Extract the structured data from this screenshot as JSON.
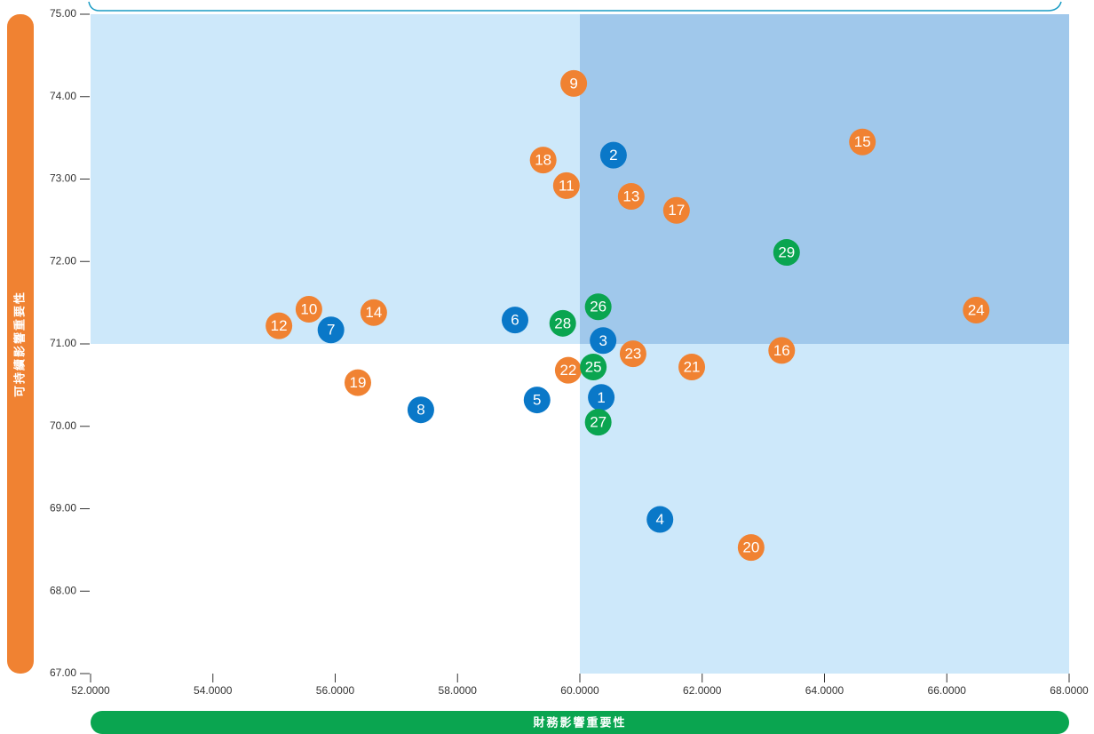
{
  "chart_data": {
    "type": "scatter",
    "xlabel": "財務影響重要性",
    "ylabel": "可持續影響重要性",
    "xlim": [
      52,
      68
    ],
    "ylim": [
      67,
      75
    ],
    "xticks": [
      {
        "value": 52,
        "label": "52.0000"
      },
      {
        "value": 54,
        "label": "54.0000"
      },
      {
        "value": 56,
        "label": "56.0000"
      },
      {
        "value": 58,
        "label": "58.0000"
      },
      {
        "value": 60,
        "label": "60.0000"
      },
      {
        "value": 62,
        "label": "62.0000"
      },
      {
        "value": 64,
        "label": "64.0000"
      },
      {
        "value": 66,
        "label": "66.0000"
      },
      {
        "value": 68,
        "label": "68.0000"
      }
    ],
    "yticks": [
      {
        "value": 67,
        "label": "67.00"
      },
      {
        "value": 68,
        "label": "68.00"
      },
      {
        "value": 69,
        "label": "69.00"
      },
      {
        "value": 70,
        "label": "70.00"
      },
      {
        "value": 71,
        "label": "71.00"
      },
      {
        "value": 72,
        "label": "72.00"
      },
      {
        "value": 73,
        "label": "73.00"
      },
      {
        "value": 74,
        "label": "74.00"
      },
      {
        "value": 75,
        "label": "75.00"
      }
    ],
    "quadrant_split": {
      "x": 60,
      "y": 71
    },
    "quadrant_colors": {
      "top_right": "#a0c8eb",
      "top_left": "#cde8fa",
      "bottom_right": "#cde8fa",
      "bottom_left": "#ffffff"
    },
    "series": [
      {
        "color": "#0a78c8",
        "labels": [
          "1",
          "2",
          "3",
          "4",
          "5",
          "6",
          "7",
          "8"
        ],
        "x": [
          60.35,
          60.55,
          60.38,
          61.31,
          59.3,
          58.94,
          55.93,
          57.4
        ],
        "values": [
          70.35,
          73.29,
          71.04,
          68.87,
          70.32,
          71.29,
          71.17,
          70.2
        ]
      },
      {
        "color": "#f08232",
        "labels": [
          "9",
          "10",
          "11",
          "12",
          "13",
          "14",
          "15",
          "16",
          "17",
          "18",
          "19",
          "20",
          "21",
          "22",
          "23",
          "24"
        ],
        "x": [
          59.9,
          55.57,
          59.78,
          55.08,
          60.84,
          56.63,
          64.62,
          63.3,
          61.58,
          59.4,
          56.37,
          62.8,
          61.83,
          59.81,
          60.87,
          66.48
        ],
        "values": [
          74.16,
          71.42,
          72.92,
          71.22,
          72.79,
          71.38,
          73.45,
          70.92,
          72.62,
          73.23,
          70.53,
          68.53,
          70.72,
          70.68,
          70.88,
          71.41
        ]
      },
      {
        "color": "#0aa550",
        "labels": [
          "25",
          "26",
          "27",
          "28",
          "29"
        ],
        "x": [
          60.22,
          60.3,
          60.3,
          59.72,
          63.38
        ],
        "values": [
          70.72,
          71.45,
          70.05,
          71.25,
          72.11
        ]
      }
    ]
  }
}
